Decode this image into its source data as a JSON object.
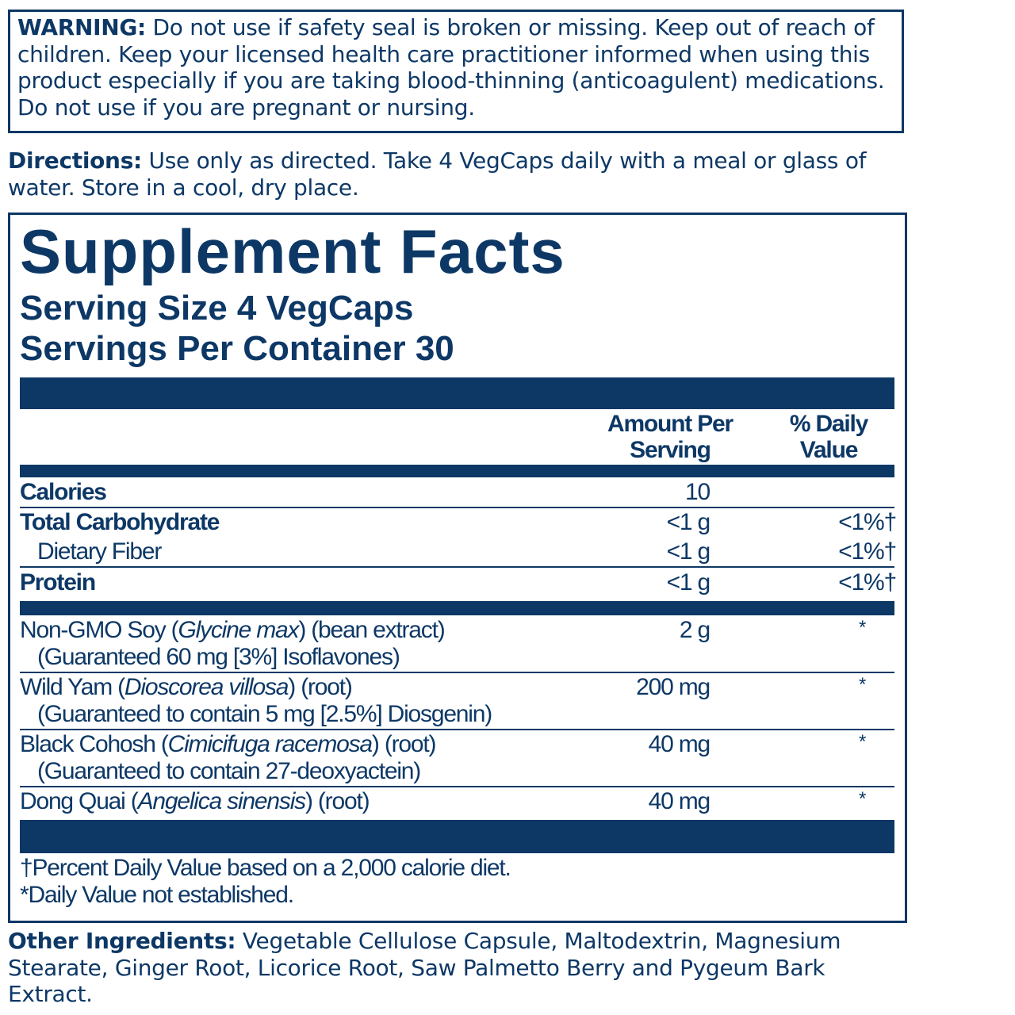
{
  "warning": {
    "label": "WARNING:",
    "text": " Do not use if safety seal is broken or missing. Keep out of reach of children. Keep your licensed health care practitioner informed when using this product especially if you are taking blood-thinning (anticoagulent) medications. Do not use if you are pregnant or nursing."
  },
  "directions": {
    "label": "Directions:",
    "text": " Use only as directed. Take 4 VegCaps daily with a meal or glass of water. Store in a cool, dry place."
  },
  "facts": {
    "title": "Supplement Facts",
    "serving_size": "Serving Size 4 VegCaps",
    "servings_per_container": "Servings Per Container 30",
    "col_amount": "Amount Per Serving",
    "col_dv": "% Daily Value",
    "nutrients": [
      {
        "name": "Calories",
        "amount": "10",
        "dv": ""
      },
      {
        "name": "Total Carbohydrate",
        "amount": "<1 g",
        "dv": "<1%†"
      },
      {
        "name": "Dietary Fiber",
        "amount": "<1 g",
        "dv": "<1%†"
      },
      {
        "name": "Protein",
        "amount": "<1 g",
        "dv": "<1%†"
      }
    ],
    "ingredients": [
      {
        "name": "Non-GMO Soy (",
        "latin": "Glycine max",
        "rest": ") (bean extract)",
        "sub": "(Guaranteed 60 mg [3%] Isoflavones)",
        "amount": "2 g",
        "dv": "*"
      },
      {
        "name": "Wild Yam (",
        "latin": "Dioscorea villosa",
        "rest": ") (root)",
        "sub": "(Guaranteed to contain 5 mg [2.5%] Diosgenin)",
        "amount": "200 mg",
        "dv": "*"
      },
      {
        "name": "Black Cohosh (",
        "latin": "Cimicifuga racemosa",
        "rest": ") (root)",
        "sub": "(Guaranteed to contain 27-deoxyactein)",
        "amount": "40 mg",
        "dv": "*"
      },
      {
        "name": "Dong Quai (",
        "latin": "Angelica sinensis",
        "rest": ") (root)",
        "sub": "",
        "amount": "40 mg",
        "dv": "*"
      }
    ],
    "footnote1": "†Percent Daily Value based on a 2,000 calorie diet.",
    "footnote2": "*Daily Value not established."
  },
  "other": {
    "label": "Other Ingredients:",
    "text": " Vegetable Cellulose Capsule, Maltodextrin, Magnesium Stearate, Ginger Root, Licorice Root, Saw Palmetto Berry and Pygeum Bark Extract."
  },
  "colors": {
    "navy": "#0d3866"
  }
}
